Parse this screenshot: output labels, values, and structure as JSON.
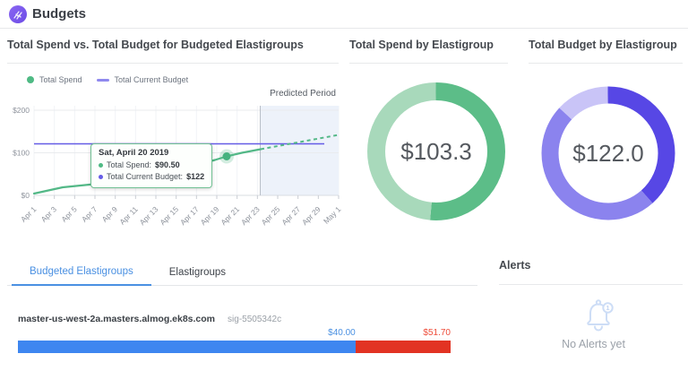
{
  "header": {
    "title": "Budgets",
    "logo": "spotinst-logo"
  },
  "spend_chart": {
    "title": "Total Spend vs. Total Budget for Budgeted Elastigroups",
    "legend": [
      {
        "label": "Total Spend",
        "marker": "dot",
        "color": "#4fba84"
      },
      {
        "label": "Total Current Budget",
        "marker": "line",
        "color": "#8f89ee"
      }
    ],
    "predicted_label": "Predicted Period",
    "y_ticks": [
      "$200",
      "$100",
      "$0"
    ],
    "x_ticks": [
      "Apr 1",
      "Apr 3",
      "Apr 5",
      "Apr 7",
      "Apr 9",
      "Apr 11",
      "Apr 13",
      "Apr 15",
      "Apr 17",
      "Apr 19",
      "Apr 21",
      "Apr 23",
      "Apr 25",
      "Apr 27",
      "Apr 29",
      "May 1"
    ],
    "tooltip": {
      "date": "Sat, April 20 2019",
      "rows": [
        {
          "label": "Total Spend:",
          "value": "$90.50",
          "color": "#4fba84"
        },
        {
          "label": "Total Current Budget:",
          "value": "$122",
          "color": "#655ce6"
        }
      ]
    }
  },
  "donuts": [
    {
      "title": "Total Spend by Elastigroup",
      "center_value": "$103.3",
      "segments": [
        {
          "value": 51.5,
          "color": "#5cbd88"
        },
        {
          "value": 48.5,
          "color": "#a8d9bb"
        }
      ]
    },
    {
      "title": "Total Budget by Elastigroup",
      "center_value": "$122.0",
      "segments": [
        {
          "value": 38.5,
          "color": "#5747e5"
        },
        {
          "value": 48.5,
          "color": "#8b83ee"
        },
        {
          "value": 13,
          "color": "#c9c4f7"
        }
      ]
    }
  ],
  "tabs": [
    {
      "label": "Budgeted Elastigroups",
      "active": true
    },
    {
      "label": "Elastigroups",
      "active": false
    }
  ],
  "alerts": {
    "title": "Alerts",
    "badge": "1",
    "empty_text": "No Alerts yet"
  },
  "budget_rows": [
    {
      "name": "master-us-west-2a.masters.almog.ek8s.com",
      "sig": "sig-5505342c",
      "spend_label": "$40.00",
      "over_label": "$51.70",
      "spend_pct": 78,
      "over_pct": 22,
      "spend_color": "#3e86f0",
      "over_color": "#e23323"
    }
  ],
  "chart_data": [
    {
      "type": "line",
      "title": "Total Spend vs. Total Budget for Budgeted Elastigroups",
      "xlabel": "date",
      "ylabel": "USD",
      "ylim": [
        0,
        200
      ],
      "x_range": [
        "Apr 1",
        "May 1"
      ],
      "predicted_period_start": "Apr 23",
      "legend_position": "top",
      "grid": true,
      "series": [
        {
          "name": "Total Spend",
          "color": "#53b887",
          "points": [
            {
              "x": "Apr 1",
              "y": 3
            },
            {
              "x": "Apr 4",
              "y": 15
            },
            {
              "x": "Apr 7",
              "y": 25
            },
            {
              "x": "Apr 10",
              "y": 34
            },
            {
              "x": "Apr 13",
              "y": 46
            },
            {
              "x": "Apr 16",
              "y": 66
            },
            {
              "x": "Apr 19",
              "y": 84
            },
            {
              "x": "Apr 20",
              "y": 90.5
            },
            {
              "x": "Apr 23",
              "y": 106
            },
            {
              "x": "May 1",
              "y": 140,
              "predicted": true
            }
          ]
        },
        {
          "name": "Total Current Budget",
          "color": "#655ce6",
          "constant_value": 122
        }
      ]
    },
    {
      "type": "pie",
      "title": "Total Spend by Elastigroup",
      "total_label": "$103.3",
      "slices": [
        {
          "share_pct": 51.5,
          "color": "#5cbd88"
        },
        {
          "share_pct": 48.5,
          "color": "#a8d9bb"
        }
      ]
    },
    {
      "type": "pie",
      "title": "Total Budget by Elastigroup",
      "total_label": "$122.0",
      "slices": [
        {
          "share_pct": 38.5,
          "color": "#5747e5"
        },
        {
          "share_pct": 48.5,
          "color": "#8b83ee"
        },
        {
          "share_pct": 13,
          "color": "#c9c4f7"
        }
      ]
    },
    {
      "type": "bar",
      "title": "Budgeted Elastigroups",
      "rows": [
        {
          "name": "master-us-west-2a.masters.almog.ek8s.com",
          "blue_value": 40.0,
          "red_value": 51.7
        }
      ]
    }
  ]
}
